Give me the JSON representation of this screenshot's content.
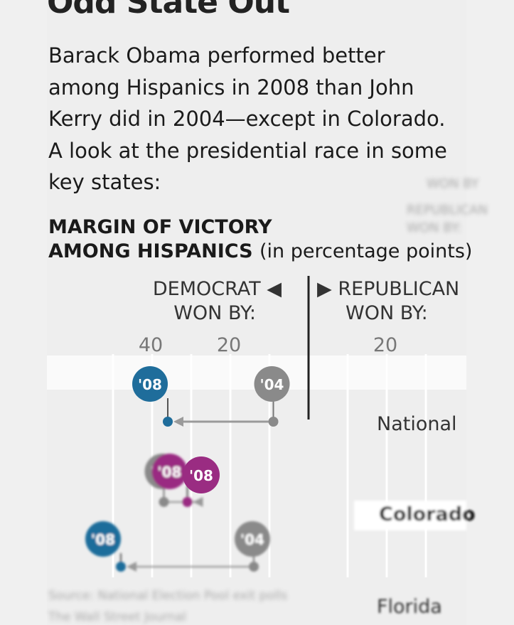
{
  "headline": "Odd State Out",
  "intro_lines": [
    "Barack Obama performed better",
    "among Hispanics in 2008 than John",
    "Kerry did in 2004—except in Colorado.",
    "A look at the presidential race in some",
    "key states:"
  ],
  "subhead": {
    "line1": "MARGIN OF VICTORY",
    "line2": "AMONG HISPANICS",
    "unit": "(in percentage points)"
  },
  "axis_headers": {
    "left_line1": "DEMOCRAT ◀",
    "left_line2": "WON BY:",
    "right_line1": "▶ REPUBLICAN",
    "right_line2": "WON BY:"
  },
  "ghost_labels": [
    "REPUBLICAN",
    "WON BY:",
    "WON BY"
  ],
  "source_note": {
    "line1": "Source: National Election Pool exit polls",
    "line2": "The Wall Street Journal"
  },
  "colors": {
    "obama_2008": "#1f6d9b",
    "kerry_2004": "#8a8a8a",
    "colorado_2008": "#9a2c82",
    "zero_line": "#222222",
    "grid": "#ffffff"
  },
  "chart_data": {
    "type": "scatter",
    "title": "",
    "xlabel": "",
    "ylabel": "",
    "x_ticks": [
      {
        "value": -40,
        "label": "40"
      },
      {
        "value": -20,
        "label": "20"
      },
      {
        "value": 20,
        "label": "20"
      }
    ],
    "xlim": [
      -48,
      30
    ],
    "note": "negative = Democrat won by, positive = Republican won by",
    "rows": [
      {
        "label": "National",
        "y08": 36,
        "y04": 9,
        "label08": "'08",
        "label04": "'04"
      },
      {
        "label": "Colorado",
        "y08": 31,
        "y04": 37,
        "label08": "'08",
        "label04": "'04"
      },
      {
        "label": "Florida",
        "y08": 48,
        "y04": 14,
        "label08": "'08",
        "label04": "'04"
      }
    ],
    "series": [
      {
        "name": "'08",
        "values": [
          36,
          31,
          48
        ]
      },
      {
        "name": "'04",
        "values": [
          9,
          37,
          14
        ]
      }
    ]
  }
}
